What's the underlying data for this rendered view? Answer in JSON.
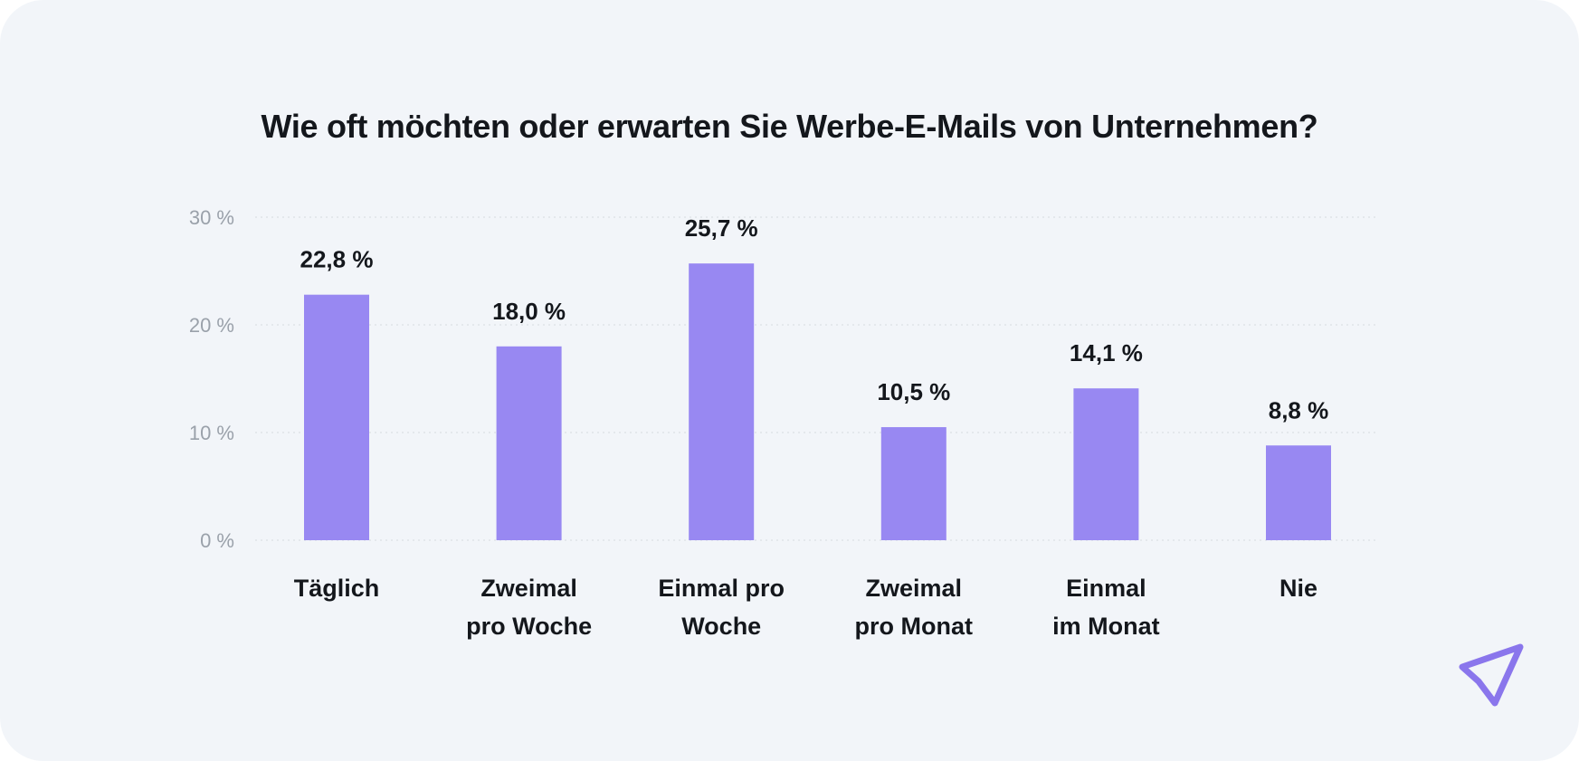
{
  "colors": {
    "background": "#f2f5f9",
    "bar": "#9888f2",
    "title": "#14171c",
    "tick": "#9aa1aa",
    "grid": "#dfe3e8",
    "logo": "#8a76ec"
  },
  "logo": {
    "icon": "paper-plane-icon"
  },
  "chart_data": {
    "type": "bar",
    "title": "Wie oft möchten oder erwarten Sie Werbe-E-Mails von Unternehmen?",
    "xlabel": "",
    "ylabel": "",
    "ylim": [
      0,
      30
    ],
    "yticks": [
      0,
      10,
      20,
      30
    ],
    "ytick_labels": [
      "0 %",
      "10 %",
      "20 %",
      "30 %"
    ],
    "grid": true,
    "legend": "none",
    "categories": [
      [
        "Täglich"
      ],
      [
        "Zweimal",
        "pro Woche"
      ],
      [
        "Einmal pro",
        "Woche"
      ],
      [
        "Zweimal",
        "pro Monat"
      ],
      [
        "Einmal",
        "im Monat"
      ],
      [
        "Nie"
      ]
    ],
    "values": [
      22.8,
      18.0,
      25.7,
      10.5,
      14.1,
      8.8
    ],
    "value_labels": [
      "22,8 %",
      "18,0 %",
      "25,7 %",
      "10,5 %",
      "14,1 %",
      "8,8 %"
    ]
  }
}
